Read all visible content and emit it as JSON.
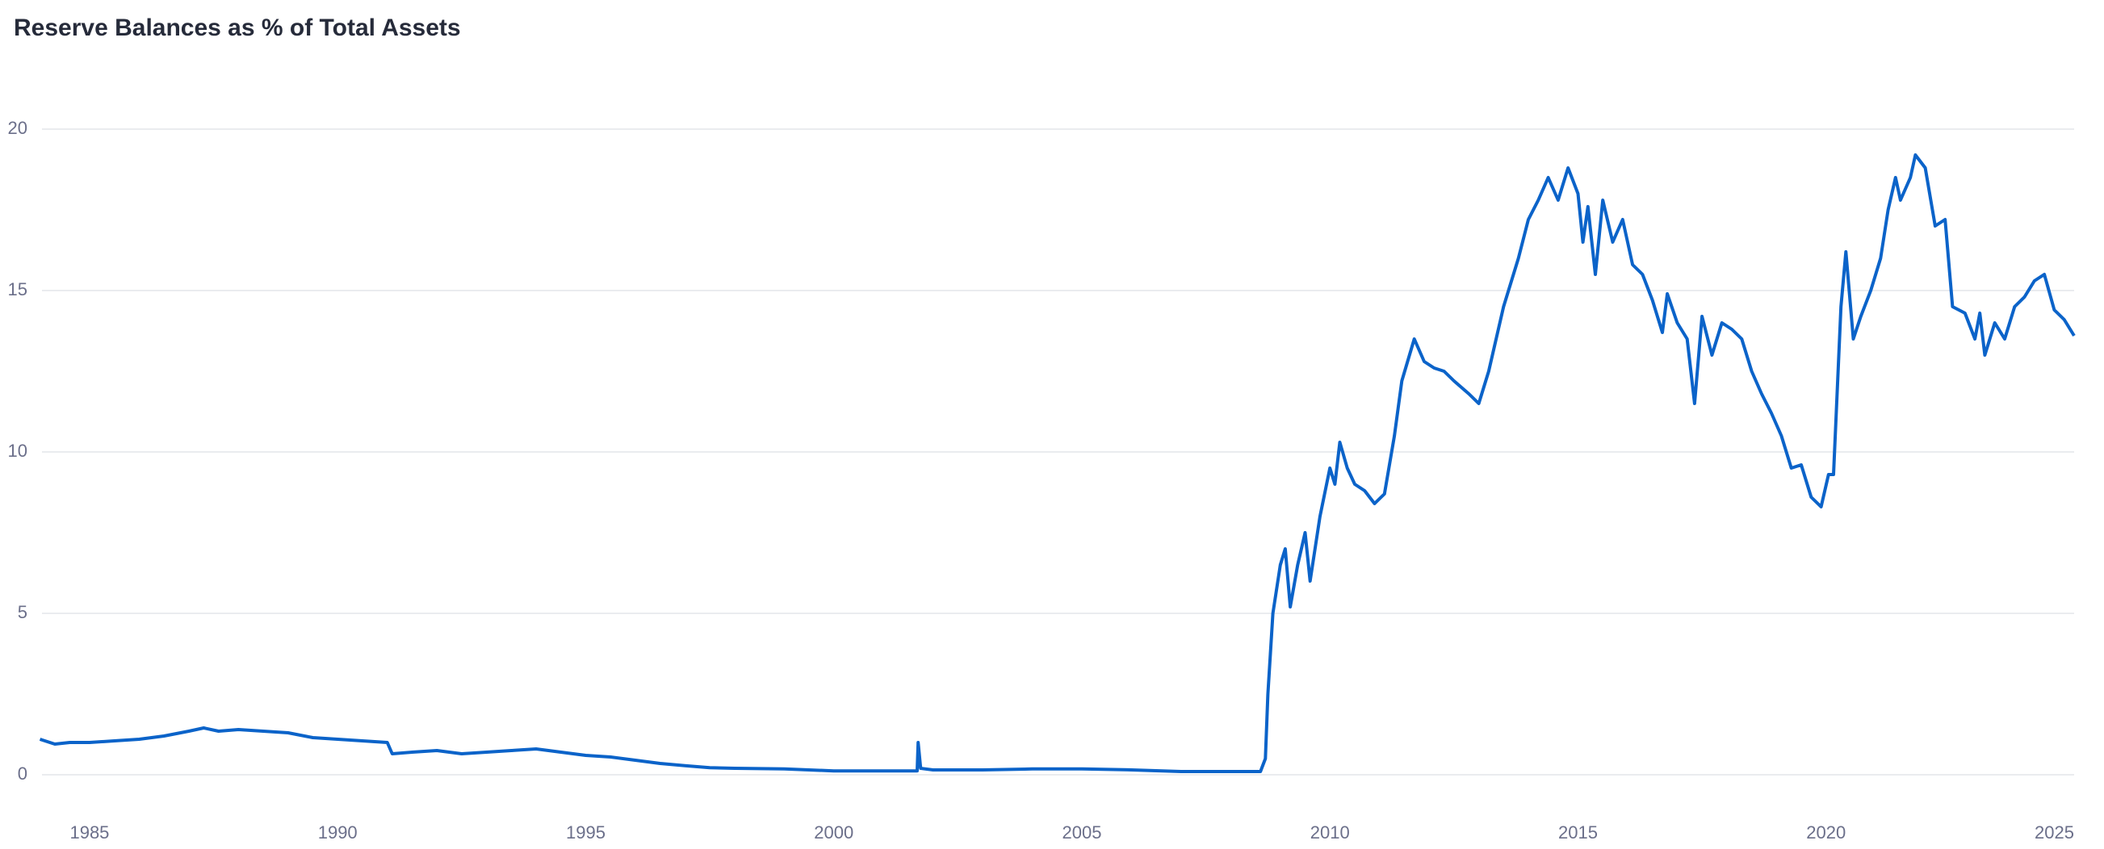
{
  "chart_data": {
    "type": "line",
    "title": "Reserve Balances as % of Total Assets",
    "x": [
      1984.0,
      1984.3,
      1984.6,
      1985.0,
      1985.5,
      1986.0,
      1986.5,
      1987.0,
      1987.3,
      1987.6,
      1988.0,
      1988.5,
      1989.0,
      1989.5,
      1990.0,
      1990.5,
      1991.0,
      1991.1,
      1991.5,
      1992.0,
      1992.5,
      1993.0,
      1993.5,
      1994.0,
      1994.5,
      1995.0,
      1995.5,
      1996.0,
      1996.5,
      1997.0,
      1997.5,
      1998.0,
      1999.0,
      2000.0,
      2001.0,
      2001.68,
      2001.7,
      2001.75,
      2002.0,
      2003.0,
      2004.0,
      2005.0,
      2006.0,
      2007.0,
      2008.0,
      2008.6,
      2008.7,
      2008.75,
      2008.85,
      2009.0,
      2009.1,
      2009.2,
      2009.35,
      2009.5,
      2009.6,
      2009.8,
      2010.0,
      2010.1,
      2010.2,
      2010.35,
      2010.5,
      2010.7,
      2010.9,
      2011.1,
      2011.3,
      2011.45,
      2011.7,
      2011.9,
      2012.1,
      2012.3,
      2012.5,
      2012.8,
      2013.0,
      2013.2,
      2013.5,
      2013.8,
      2014.0,
      2014.2,
      2014.4,
      2014.6,
      2014.8,
      2015.0,
      2015.1,
      2015.2,
      2015.35,
      2015.5,
      2015.7,
      2015.9,
      2016.1,
      2016.3,
      2016.5,
      2016.7,
      2016.8,
      2017.0,
      2017.2,
      2017.35,
      2017.5,
      2017.7,
      2017.9,
      2018.1,
      2018.3,
      2018.5,
      2018.7,
      2018.9,
      2019.1,
      2019.3,
      2019.5,
      2019.7,
      2019.9,
      2020.05,
      2020.15,
      2020.3,
      2020.4,
      2020.55,
      2020.7,
      2020.9,
      2021.1,
      2021.25,
      2021.4,
      2021.5,
      2021.7,
      2021.8,
      2022.0,
      2022.2,
      2022.4,
      2022.55,
      2022.8,
      2023.0,
      2023.1,
      2023.2,
      2023.4,
      2023.6,
      2023.8,
      2024.0,
      2024.2,
      2024.4,
      2024.6,
      2024.8,
      2025.0
    ],
    "values": [
      1.1,
      0.95,
      1.0,
      1.0,
      1.05,
      1.1,
      1.2,
      1.35,
      1.45,
      1.35,
      1.4,
      1.35,
      1.3,
      1.15,
      1.1,
      1.05,
      1.0,
      0.65,
      0.7,
      0.75,
      0.65,
      0.7,
      0.75,
      0.8,
      0.7,
      0.6,
      0.55,
      0.45,
      0.35,
      0.28,
      0.22,
      0.2,
      0.18,
      0.12,
      0.12,
      0.12,
      1.0,
      0.2,
      0.15,
      0.15,
      0.18,
      0.18,
      0.15,
      0.1,
      0.1,
      0.1,
      0.5,
      2.5,
      5.0,
      6.5,
      7.0,
      5.2,
      6.5,
      7.5,
      6.0,
      8.0,
      9.5,
      9.0,
      10.3,
      9.5,
      9.0,
      8.8,
      8.4,
      8.7,
      10.5,
      12.2,
      13.5,
      12.8,
      12.6,
      12.5,
      12.2,
      11.8,
      11.5,
      12.5,
      14.5,
      16.0,
      17.2,
      17.8,
      18.5,
      17.8,
      18.8,
      18.0,
      16.5,
      17.6,
      15.5,
      17.8,
      16.5,
      17.2,
      15.8,
      15.5,
      14.7,
      13.7,
      14.9,
      14.0,
      13.5,
      11.5,
      14.2,
      13.0,
      14.0,
      13.8,
      13.5,
      12.5,
      11.8,
      11.2,
      10.5,
      9.5,
      9.6,
      8.6,
      8.3,
      9.3,
      9.3,
      14.5,
      16.2,
      13.5,
      14.2,
      15.0,
      16.0,
      17.5,
      18.5,
      17.8,
      18.5,
      19.2,
      18.8,
      17.0,
      17.2,
      14.5,
      14.3,
      13.5,
      14.3,
      13.0,
      14.0,
      13.5,
      14.5,
      14.8,
      15.3,
      15.5,
      14.4,
      14.1,
      13.6
    ],
    "color": "#0b63c9",
    "xlim": [
      1984,
      2025
    ],
    "xticks": [
      1985,
      1990,
      1995,
      2000,
      2005,
      2010,
      2015,
      2020,
      2025
    ],
    "ylim": [
      0,
      20
    ],
    "yticks": [
      0,
      5,
      10,
      15,
      20
    ],
    "grid": true
  }
}
